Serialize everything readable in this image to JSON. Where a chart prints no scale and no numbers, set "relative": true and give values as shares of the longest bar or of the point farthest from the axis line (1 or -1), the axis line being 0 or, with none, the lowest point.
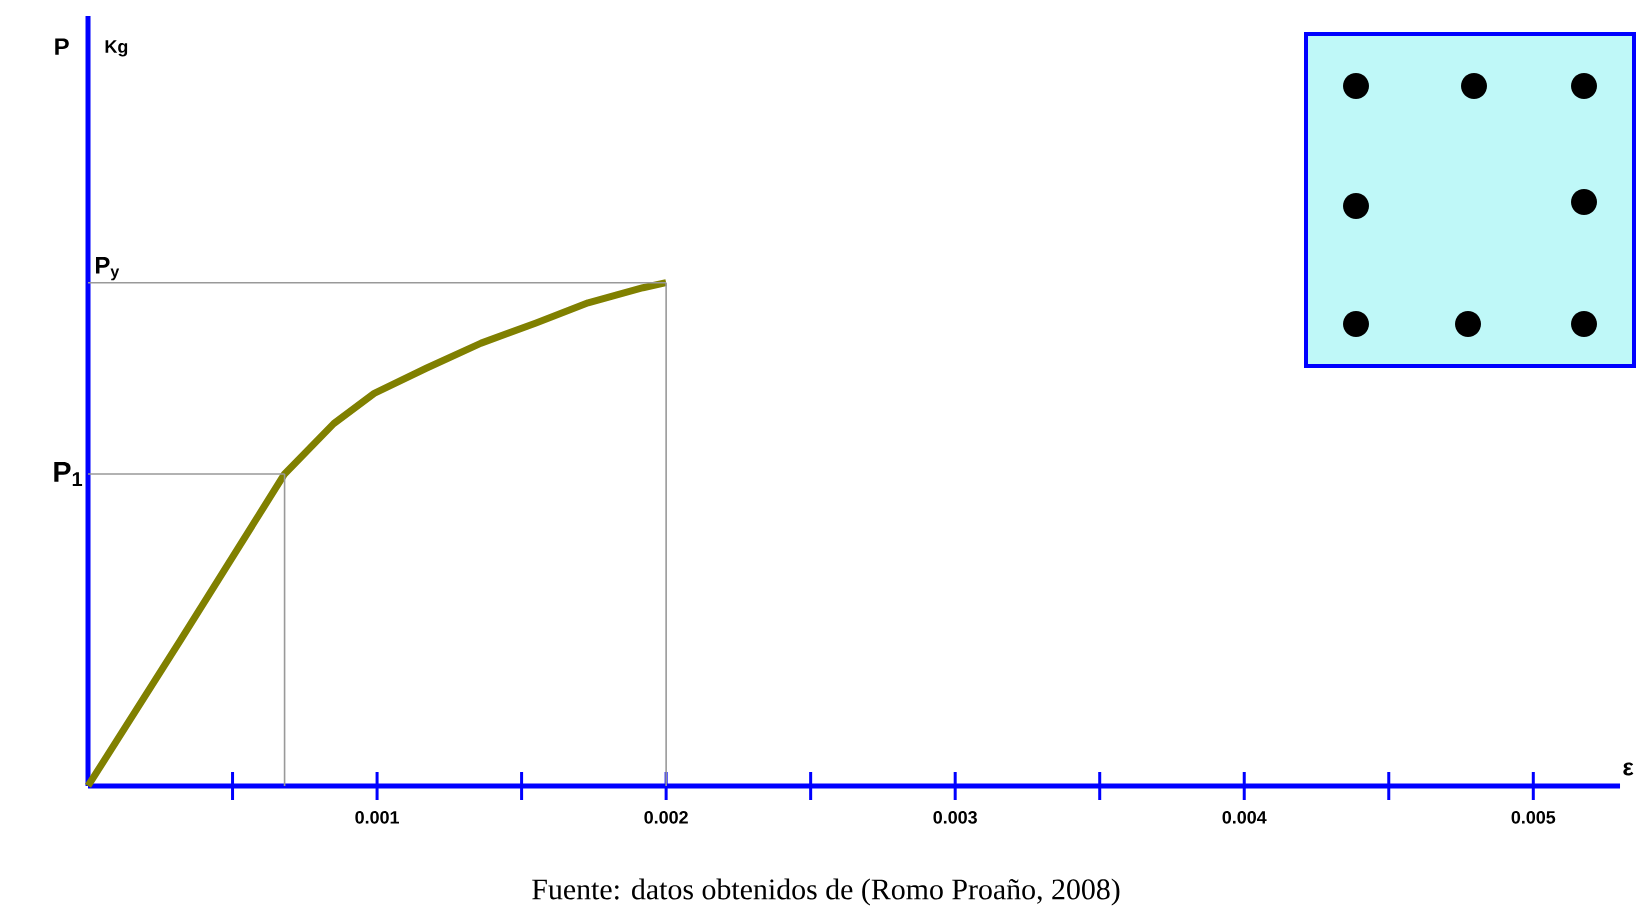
{
  "chart_data": {
    "type": "line",
    "relative": true,
    "xlabel": "ε",
    "x": [
      0,
      0.00032,
      0.00068,
      0.00085,
      0.00099,
      0.00117,
      0.00136,
      0.00155,
      0.00173,
      0.00192,
      0.002
    ],
    "series": [
      {
        "color": "#808000",
        "values": [
          0,
          0.29,
          0.62,
          0.72,
          0.78,
          0.83,
          0.88,
          0.92,
          0.96,
          0.99,
          1
        ]
      }
    ],
    "xlim": [
      0,
      0.0053
    ],
    "xticks": [
      {
        "value": 0.0005,
        "label": null
      },
      {
        "value": 0.001,
        "label": "0.001"
      },
      {
        "value": 0.0015,
        "label": null
      },
      {
        "value": 0.002,
        "label": "0.002"
      },
      {
        "value": 0.0025,
        "label": null
      },
      {
        "value": 0.003,
        "label": "0.003"
      },
      {
        "value": 0.0035,
        "label": null
      },
      {
        "value": 0.004,
        "label": "0.004"
      },
      {
        "value": 0.0045,
        "label": null
      },
      {
        "value": 0.005,
        "label": "0.005"
      }
    ],
    "ref_lines": [
      {
        "axis": "y",
        "value": 0.62,
        "label": "P$_{1}$",
        "color": "#999999"
      },
      {
        "axis": "y",
        "value": 1,
        "label": "P$_{y}$",
        "color": "#999999"
      },
      {
        "axis": "x",
        "value": 0.00068,
        "color": "#999999"
      },
      {
        "axis": "x",
        "value": 0.002,
        "color": "#999999"
      }
    ],
    "annotations": [
      "P",
      "Kg",
      "Fuente: datos obtenidos de (Romo Proaño, 2008)"
    ]
  }
}
